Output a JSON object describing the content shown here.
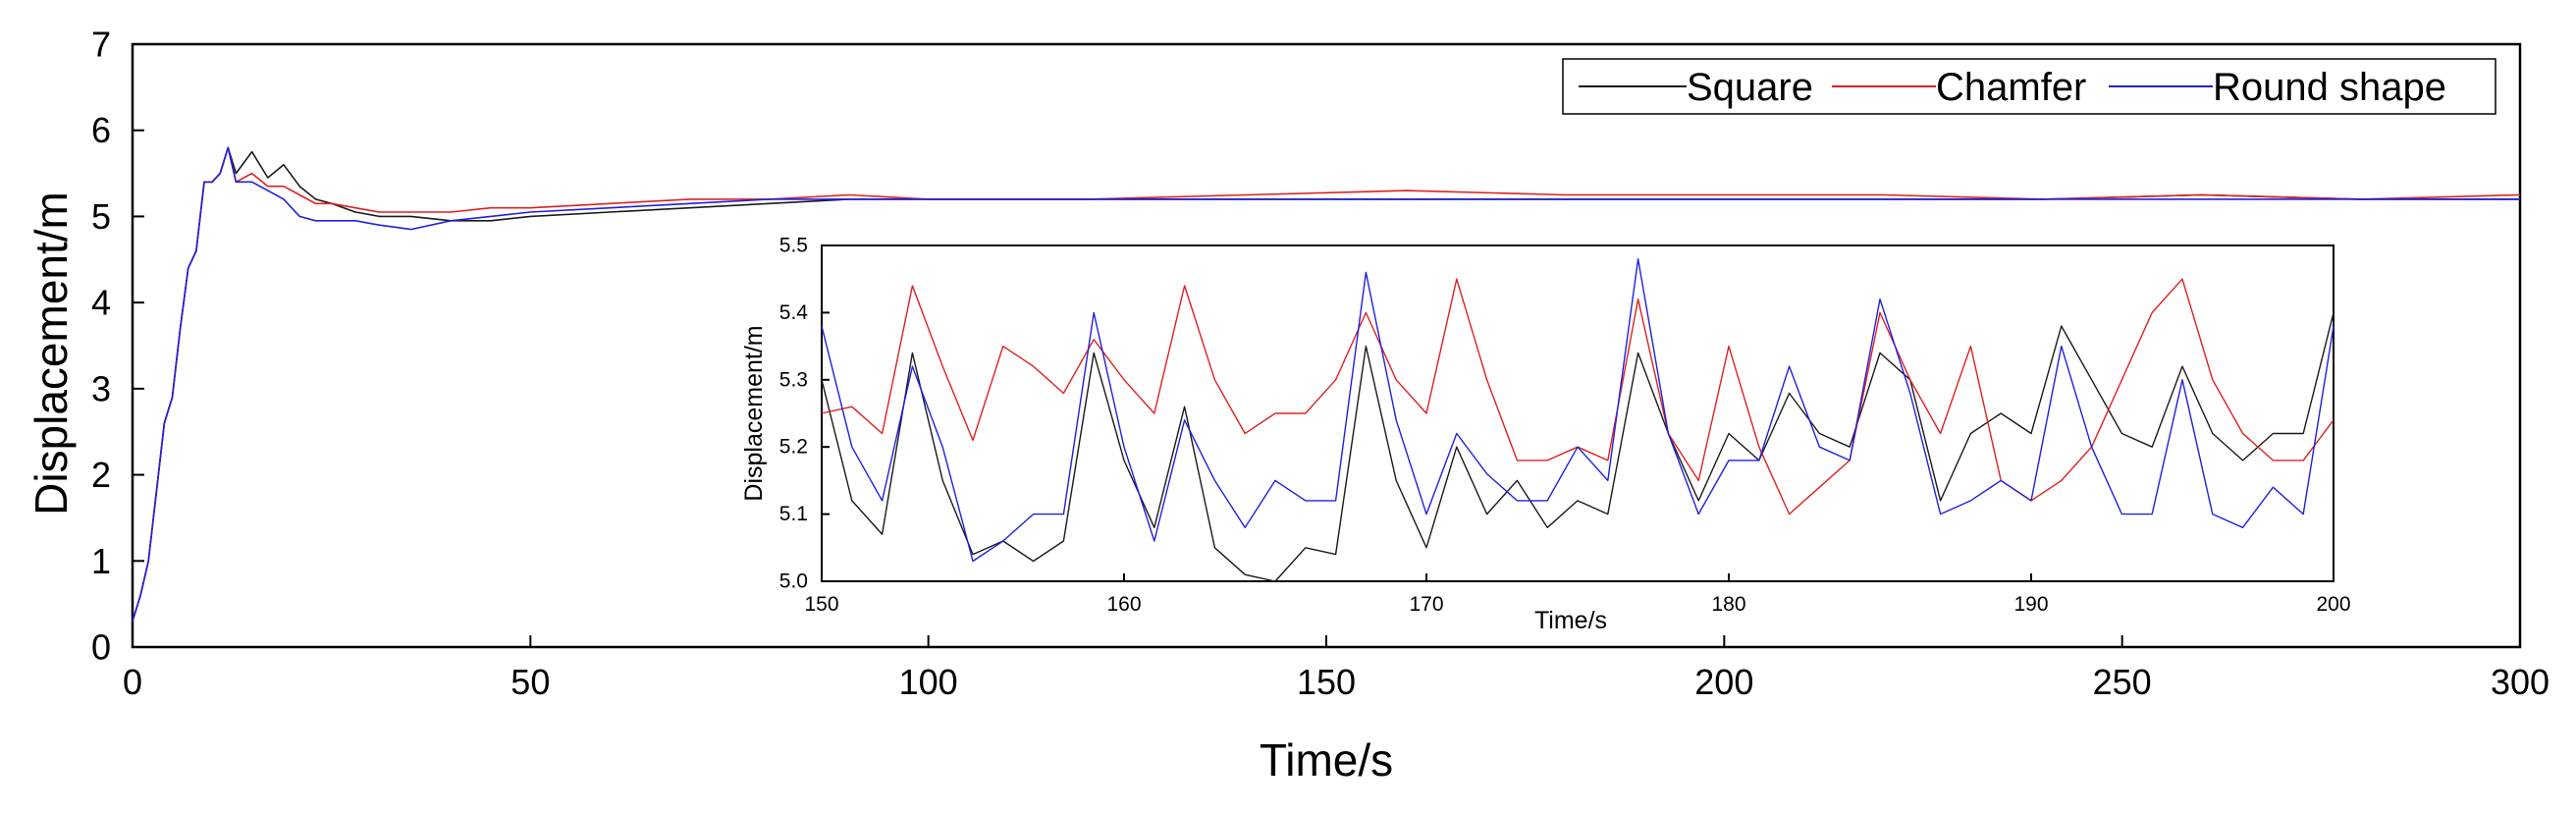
{
  "chart_data": [
    {
      "type": "line",
      "title": "",
      "xlabel": "Time/s",
      "ylabel": "Displacement/m",
      "xlim": [
        0,
        300
      ],
      "ylim": [
        0,
        7
      ],
      "x_ticks": [
        0,
        50,
        100,
        150,
        200,
        250,
        300
      ],
      "y_ticks": [
        0,
        1,
        2,
        3,
        4,
        5,
        6,
        7
      ],
      "legend": {
        "placement": "top-right",
        "entries": [
          "Square",
          "Chamfer",
          "Round shape"
        ]
      },
      "series": [
        {
          "name": "Square",
          "color": "#1a1a1a",
          "x": [
            0,
            1,
            2,
            3,
            4,
            5,
            6,
            7,
            8,
            9,
            10,
            11,
            12,
            13,
            15,
            17,
            19,
            21,
            23,
            25,
            28,
            31,
            35,
            40,
            45,
            50,
            60,
            70,
            80,
            90,
            100,
            120,
            140,
            160,
            180,
            200,
            220,
            240,
            260,
            280,
            300
          ],
          "y": [
            0.3,
            0.6,
            1.0,
            1.8,
            2.6,
            2.9,
            3.7,
            4.4,
            4.6,
            5.4,
            5.4,
            5.5,
            5.8,
            5.5,
            5.75,
            5.45,
            5.6,
            5.35,
            5.2,
            5.15,
            5.05,
            5.0,
            5.0,
            4.95,
            4.95,
            5.0,
            5.05,
            5.1,
            5.15,
            5.2,
            5.2,
            5.2,
            5.2,
            5.2,
            5.2,
            5.2,
            5.2,
            5.2,
            5.25,
            5.2,
            5.2
          ]
        },
        {
          "name": "Chamfer",
          "color": "#e02020",
          "x": [
            0,
            1,
            2,
            3,
            4,
            5,
            6,
            7,
            8,
            9,
            10,
            11,
            12,
            13,
            15,
            17,
            19,
            21,
            23,
            25,
            28,
            31,
            35,
            40,
            45,
            50,
            60,
            70,
            80,
            90,
            100,
            120,
            140,
            160,
            180,
            200,
            220,
            240,
            260,
            280,
            300
          ],
          "y": [
            0.3,
            0.6,
            1.0,
            1.8,
            2.6,
            2.9,
            3.7,
            4.4,
            4.6,
            5.4,
            5.4,
            5.5,
            5.8,
            5.4,
            5.5,
            5.35,
            5.35,
            5.25,
            5.15,
            5.15,
            5.1,
            5.05,
            5.05,
            5.05,
            5.1,
            5.1,
            5.15,
            5.2,
            5.2,
            5.25,
            5.2,
            5.2,
            5.25,
            5.3,
            5.25,
            5.25,
            5.25,
            5.2,
            5.25,
            5.2,
            5.25
          ]
        },
        {
          "name": "Round shape",
          "color": "#2020e0",
          "x": [
            0,
            1,
            2,
            3,
            4,
            5,
            6,
            7,
            8,
            9,
            10,
            11,
            12,
            13,
            15,
            17,
            19,
            21,
            23,
            25,
            28,
            31,
            35,
            40,
            45,
            50,
            60,
            70,
            80,
            90,
            100,
            120,
            140,
            160,
            180,
            200,
            220,
            240,
            260,
            280,
            300
          ],
          "y": [
            0.3,
            0.6,
            1.0,
            1.8,
            2.6,
            2.9,
            3.7,
            4.4,
            4.6,
            5.4,
            5.4,
            5.5,
            5.8,
            5.4,
            5.4,
            5.3,
            5.2,
            5.0,
            4.95,
            4.95,
            4.95,
            4.9,
            4.85,
            4.95,
            5.0,
            5.05,
            5.1,
            5.15,
            5.2,
            5.2,
            5.2,
            5.2,
            5.2,
            5.2,
            5.2,
            5.2,
            5.2,
            5.2,
            5.2,
            5.2,
            5.2
          ]
        }
      ]
    },
    {
      "type": "line",
      "title": "",
      "xlabel": "Time/s",
      "ylabel": "Displacement/m",
      "xlim": [
        150,
        200
      ],
      "ylim": [
        5.0,
        5.5
      ],
      "x_ticks": [
        150,
        160,
        170,
        180,
        190,
        200
      ],
      "y_ticks": [
        5.0,
        5.1,
        5.2,
        5.3,
        5.4,
        5.5
      ],
      "x_tick_labels": [
        "150",
        "160",
        "170",
        "180",
        "190",
        "200"
      ],
      "y_tick_labels": [
        "5.0",
        "5.1",
        "5.2",
        "5.3",
        "5.4",
        "5.5"
      ],
      "series": [
        {
          "name": "Square",
          "color": "#1a1a1a",
          "x": [
            150,
            151,
            152,
            153,
            154,
            155,
            156,
            157,
            158,
            159,
            160,
            161,
            162,
            163,
            164,
            165,
            166,
            167,
            168,
            169,
            170,
            171,
            172,
            173,
            174,
            175,
            176,
            177,
            178,
            179,
            180,
            181,
            182,
            183,
            184,
            185,
            186,
            187,
            188,
            189,
            190,
            191,
            192,
            193,
            194,
            195,
            196,
            197,
            198,
            199,
            200
          ],
          "y": [
            5.3,
            5.12,
            5.07,
            5.34,
            5.15,
            5.04,
            5.06,
            5.03,
            5.06,
            5.34,
            5.18,
            5.08,
            5.26,
            5.05,
            5.01,
            5.0,
            5.05,
            5.04,
            5.35,
            5.15,
            5.05,
            5.2,
            5.1,
            5.15,
            5.08,
            5.12,
            5.1,
            5.34,
            5.22,
            5.12,
            5.22,
            5.18,
            5.28,
            5.22,
            5.2,
            5.34,
            5.3,
            5.12,
            5.22,
            5.25,
            5.22,
            5.38,
            5.3,
            5.22,
            5.2,
            5.32,
            5.22,
            5.18,
            5.22,
            5.22,
            5.4
          ]
        },
        {
          "name": "Chamfer",
          "color": "#e02020",
          "x": [
            150,
            151,
            152,
            153,
            154,
            155,
            156,
            157,
            158,
            159,
            160,
            161,
            162,
            163,
            164,
            165,
            166,
            167,
            168,
            169,
            170,
            171,
            172,
            173,
            174,
            175,
            176,
            177,
            178,
            179,
            180,
            181,
            182,
            183,
            184,
            185,
            186,
            187,
            188,
            189,
            190,
            191,
            192,
            193,
            194,
            195,
            196,
            197,
            198,
            199,
            200
          ],
          "y": [
            5.25,
            5.26,
            5.22,
            5.44,
            5.32,
            5.21,
            5.35,
            5.32,
            5.28,
            5.36,
            5.3,
            5.25,
            5.44,
            5.3,
            5.22,
            5.25,
            5.25,
            5.3,
            5.4,
            5.3,
            5.25,
            5.45,
            5.3,
            5.18,
            5.18,
            5.2,
            5.18,
            5.42,
            5.22,
            5.15,
            5.35,
            5.2,
            5.1,
            5.14,
            5.18,
            5.4,
            5.3,
            5.22,
            5.35,
            5.15,
            5.12,
            5.15,
            5.2,
            5.3,
            5.4,
            5.45,
            5.3,
            5.22,
            5.18,
            5.18,
            5.24
          ]
        },
        {
          "name": "Round shape",
          "color": "#2020e0",
          "x": [
            150,
            151,
            152,
            153,
            154,
            155,
            156,
            157,
            158,
            159,
            160,
            161,
            162,
            163,
            164,
            165,
            166,
            167,
            168,
            169,
            170,
            171,
            172,
            173,
            174,
            175,
            176,
            177,
            178,
            179,
            180,
            181,
            182,
            183,
            184,
            185,
            186,
            187,
            188,
            189,
            190,
            191,
            192,
            193,
            194,
            195,
            196,
            197,
            198,
            199,
            200
          ],
          "y": [
            5.38,
            5.2,
            5.12,
            5.32,
            5.2,
            5.03,
            5.06,
            5.1,
            5.1,
            5.4,
            5.2,
            5.06,
            5.24,
            5.15,
            5.08,
            5.15,
            5.12,
            5.12,
            5.46,
            5.24,
            5.1,
            5.22,
            5.16,
            5.12,
            5.12,
            5.2,
            5.15,
            5.48,
            5.22,
            5.1,
            5.18,
            5.18,
            5.32,
            5.2,
            5.18,
            5.42,
            5.28,
            5.1,
            5.12,
            5.15,
            5.12,
            5.35,
            5.2,
            5.1,
            5.1,
            5.3,
            5.1,
            5.08,
            5.14,
            5.1,
            5.38
          ]
        }
      ]
    }
  ]
}
